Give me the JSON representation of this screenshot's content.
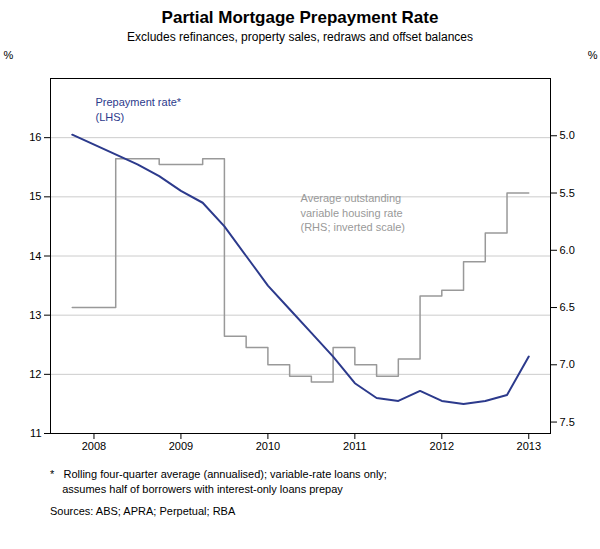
{
  "chart_data": {
    "type": "line",
    "title": "Partial Mortgage Prepayment Rate",
    "subtitle": "Excludes refinances, property sales, redraws and offset balances",
    "footnote": "*   Rolling four-quarter average (annualised); variable-rate loans only;\n    assumes half of borrowers with interest-only loans prepay",
    "source": "Sources: ABS; APRA; Perpetual; RBA",
    "ylabel": "%",
    "y2label": "%",
    "xlim": [
      2007.5,
      2013.25
    ],
    "xticks": [
      2008,
      2009,
      2010,
      2011,
      2012,
      2013
    ],
    "ylim": [
      11,
      17
    ],
    "yticks": [
      11,
      12,
      13,
      14,
      15,
      16
    ],
    "y2lim": [
      7.6,
      4.5
    ],
    "y2ticks": [
      {
        "value": 5,
        "label": "5.0"
      },
      5.5,
      {
        "value": 6,
        "label": "6.0"
      },
      6.5,
      {
        "value": 7,
        "label": "7.0"
      },
      7.5
    ],
    "grid": true,
    "series": [
      {
        "name": "Prepayment rate*\n(LHS)",
        "color": "#2c3a8c",
        "x": [
          2007.75,
          2008.5,
          2008.75,
          2009.0,
          2009.25,
          2009.5,
          2009.75,
          2010.0,
          2010.25,
          2010.5,
          2010.75,
          2011.0,
          2011.25,
          2011.5,
          2011.75,
          2012.0,
          2012.25,
          2012.5,
          2012.75,
          2013.0
        ],
        "values": [
          16.05,
          15.55,
          15.35,
          15.1,
          14.9,
          14.5,
          14.0,
          13.5,
          13.1,
          12.7,
          12.3,
          11.85,
          11.6,
          11.55,
          11.72,
          11.55,
          11.5,
          11.55,
          11.65,
          12.3
        ]
      },
      {
        "name": "Average outstanding\nvariable housing rate\n(RHS; inverted scale)",
        "color": "#999999",
        "axis": "y2",
        "x": [
          2007.75,
          2008.25,
          2008.25,
          2008.75,
          2008.75,
          2009.25,
          2009.25,
          2009.5,
          2009.5,
          2009.75,
          2009.75,
          2010.0,
          2010.0,
          2010.25,
          2010.25,
          2010.5,
          2010.5,
          2010.75,
          2010.75,
          2011.0,
          2011.0,
          2011.25,
          2011.25,
          2011.5,
          2011.5,
          2011.75,
          2011.75,
          2012.0,
          2012.0,
          2012.25,
          2012.25,
          2012.5,
          2012.5,
          2012.75,
          2012.75,
          2013.0
        ],
        "values": [
          6.5,
          6.5,
          5.2,
          5.2,
          5.25,
          5.25,
          5.2,
          5.2,
          6.75,
          6.75,
          6.85,
          6.85,
          7.0,
          7.0,
          7.1,
          7.1,
          7.15,
          7.15,
          6.85,
          6.85,
          7.0,
          7.0,
          7.1,
          7.1,
          6.95,
          6.95,
          6.4,
          6.4,
          6.35,
          6.35,
          6.1,
          6.1,
          5.85,
          5.85,
          5.5,
          5.5
        ]
      }
    ]
  }
}
